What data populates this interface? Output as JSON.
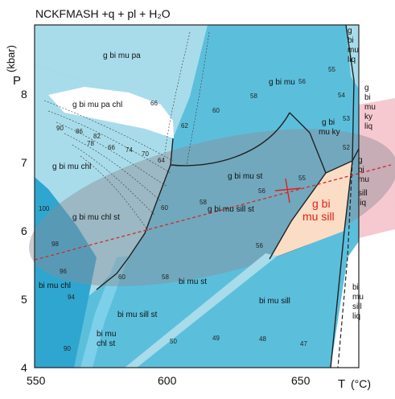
{
  "title": "NCKFMASH +q + pl + H₂O",
  "axes": {
    "x_label": "T",
    "x_unit": "(°C)",
    "y_label": "P",
    "y_unit": "(kbar)",
    "x_ticks": [
      "550",
      "600",
      "650"
    ],
    "y_ticks": [
      "8",
      "7",
      "6",
      "5",
      "4"
    ]
  },
  "fields": [
    {
      "id": "g-bi-mu-pa",
      "text": [
        "g bi mu pa"
      ]
    },
    {
      "id": "g-bi-mu-pa-chl",
      "text": [
        "g bi mu pa chl"
      ]
    },
    {
      "id": "g-bi-mu",
      "text": [
        "g bi mu"
      ]
    },
    {
      "id": "g-bi-mu-liq",
      "text": [
        "g",
        "bi",
        "mu",
        "liq"
      ]
    },
    {
      "id": "g-bi-mu-ky-liq",
      "text": [
        "g",
        "bi",
        "mu",
        "ky",
        "liq"
      ]
    },
    {
      "id": "g-bi-mu-ky",
      "text": [
        "g bi",
        "mu ky"
      ]
    },
    {
      "id": "g-bi-mu-chl",
      "text": [
        "g bi mu chl"
      ]
    },
    {
      "id": "g-bi-mu-st",
      "text": [
        "g bi mu st"
      ]
    },
    {
      "id": "g-bi-mu-sill-st",
      "text": [
        "g bi mu sill st"
      ]
    },
    {
      "id": "g-bi-mu-sill-liq",
      "text": [
        "g",
        "bi",
        "mu",
        "sill",
        "liq"
      ]
    },
    {
      "id": "g-bi-mu-chl-st",
      "text": [
        "g bi mu chl st"
      ]
    },
    {
      "id": "g-bi-mu-sill",
      "text": [
        "g bi",
        "mu sill"
      ]
    },
    {
      "id": "bi-mu-chl",
      "text": [
        "bi mu chl"
      ]
    },
    {
      "id": "bi-mu-st",
      "text": [
        "bi mu  st"
      ]
    },
    {
      "id": "bi-mu-sill-st",
      "text": [
        "bi mu  sill st"
      ]
    },
    {
      "id": "bi-mu-sill",
      "text": [
        "bi mu  sill"
      ]
    },
    {
      "id": "bi-mu-chl-st",
      "text": [
        "bi mu",
        "chl st"
      ]
    },
    {
      "id": "bi-mu-sill-liq",
      "text": [
        "bi",
        "mu",
        "sill",
        "liq"
      ]
    }
  ],
  "isopleths": [
    "66",
    "64",
    "62",
    "60",
    "58",
    "56",
    "55",
    "54",
    "53",
    "52",
    "90",
    "86",
    "82",
    "78",
    "74",
    "70",
    "66",
    "62",
    "60",
    "58",
    "56",
    "55",
    "56",
    "100",
    "98",
    "96",
    "94",
    "90",
    "60",
    "58",
    "56",
    "50",
    "49",
    "48",
    "47"
  ],
  "colors": {
    "light_field": "#a8dcea",
    "medium_field": "#5bbfdc",
    "dark_field": "#2fa6d0",
    "white_field": "#ffffff",
    "gray_overlay": "#8c8c96",
    "sill_field": "#fbdcc5",
    "pink_band": "#f6c9d0",
    "label_red": "#e0201c",
    "dashed_line": "#d42a2a"
  }
}
